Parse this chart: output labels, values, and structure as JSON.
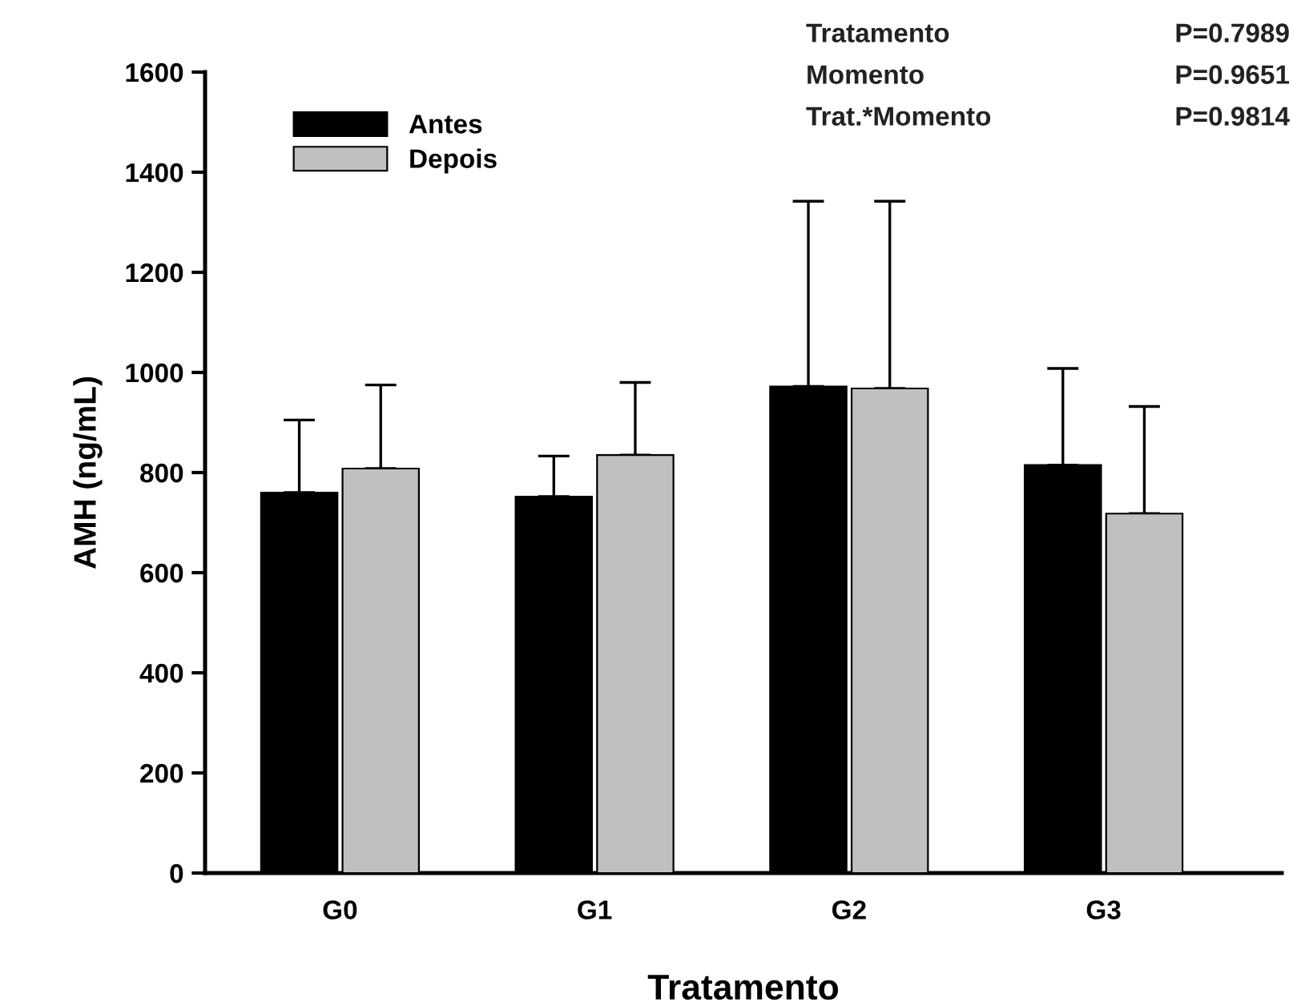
{
  "chart_data": {
    "type": "bar",
    "xlabel": "Tratamento",
    "ylabel": "AMH (ng/mL)",
    "categories": [
      "G0",
      "G1",
      "G2",
      "G3"
    ],
    "series": [
      {
        "name": "Antes",
        "color": "#000000",
        "values": [
          760,
          752,
          972,
          815
        ],
        "errors": [
          [
            760,
            905
          ],
          [
            752,
            833
          ],
          [
            972,
            1342
          ],
          [
            815,
            1008
          ]
        ]
      },
      {
        "name": "Depois",
        "color": "#c0c0c0",
        "values": [
          808,
          835,
          968,
          718
        ],
        "errors": [
          [
            808,
            975
          ],
          [
            835,
            980
          ],
          [
            968,
            1342
          ],
          [
            718,
            932
          ]
        ]
      }
    ],
    "ylim": [
      0,
      1600
    ],
    "yticks": [
      0,
      200,
      400,
      600,
      800,
      1000,
      1200,
      1400,
      1600
    ],
    "annotations": [
      "Tratamento",
      "P=0.7989",
      "Momento",
      "P=0.9651",
      "Trat.*Momento",
      "P=0.9814"
    ],
    "legend": "top left",
    "grid": false
  }
}
